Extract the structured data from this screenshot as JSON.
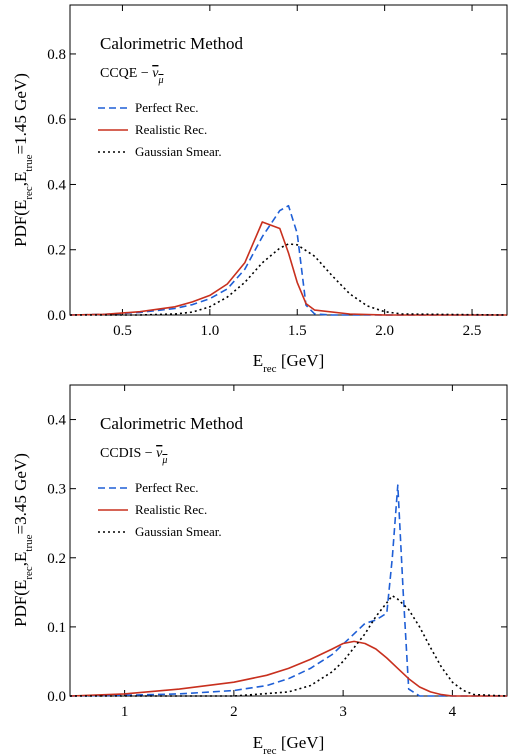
{
  "chart_data": [
    {
      "type": "line",
      "title": "Calorimetric Method",
      "subtitle": "CCQE − ν̅μ",
      "xlabel": "E_rec [GeV]",
      "ylabel": "PDF(E_rec, E_true=1.45 GeV)",
      "xlim": [
        0.2,
        2.7
      ],
      "ylim": [
        0,
        0.95
      ],
      "xticks": [
        0.5,
        1.0,
        1.5,
        2.0,
        2.5
      ],
      "yticks": [
        0.0,
        0.2,
        0.4,
        0.6,
        0.8
      ],
      "xtick_labels": [
        "0.5",
        "1.0",
        "1.5",
        "2.0",
        "2.5"
      ],
      "ytick_labels": [
        "0.0",
        "0.2",
        "0.4",
        "0.6",
        "0.8"
      ],
      "legend_position": "upper-left",
      "series": [
        {
          "name": "Perfect Rec.",
          "color": "#1f5fd6",
          "dash": "dashed",
          "x": [
            0.2,
            0.4,
            0.6,
            0.8,
            0.9,
            1.0,
            1.1,
            1.2,
            1.3,
            1.4,
            1.45,
            1.5,
            1.55,
            1.6,
            1.7,
            2.7
          ],
          "y": [
            0.0,
            0.002,
            0.008,
            0.02,
            0.032,
            0.05,
            0.08,
            0.14,
            0.24,
            0.32,
            0.335,
            0.25,
            0.03,
            0.003,
            0.0,
            0.0
          ]
        },
        {
          "name": "Realistic Rec.",
          "color": "#c8301e",
          "dash": "solid",
          "x": [
            0.2,
            0.4,
            0.6,
            0.8,
            0.9,
            1.0,
            1.1,
            1.2,
            1.3,
            1.4,
            1.45,
            1.5,
            1.55,
            1.6,
            1.8,
            2.0,
            2.7
          ],
          "y": [
            0.0,
            0.002,
            0.01,
            0.025,
            0.04,
            0.06,
            0.095,
            0.16,
            0.285,
            0.265,
            0.19,
            0.1,
            0.035,
            0.015,
            0.003,
            0.0,
            0.0
          ]
        },
        {
          "name": "Gaussian Smear.",
          "color": "#000000",
          "dash": "dotted",
          "x": [
            0.2,
            0.6,
            0.8,
            0.9,
            1.0,
            1.1,
            1.2,
            1.3,
            1.4,
            1.45,
            1.5,
            1.6,
            1.7,
            1.8,
            1.9,
            2.0,
            2.1,
            2.7
          ],
          "y": [
            0.0,
            0.0,
            0.003,
            0.009,
            0.025,
            0.055,
            0.1,
            0.16,
            0.205,
            0.218,
            0.215,
            0.18,
            0.12,
            0.065,
            0.028,
            0.01,
            0.003,
            0.0
          ]
        }
      ]
    },
    {
      "type": "line",
      "title": "Calorimetric Method",
      "subtitle": "CCDIS − ν̅μ",
      "xlabel": "E_rec [GeV]",
      "ylabel": "PDF(E_rec, E_true=3.45 GeV)",
      "xlim": [
        0.5,
        4.5
      ],
      "ylim": [
        0,
        0.45
      ],
      "xticks": [
        1,
        2,
        3,
        4
      ],
      "yticks": [
        0.0,
        0.1,
        0.2,
        0.3,
        0.4
      ],
      "xtick_labels": [
        "1",
        "2",
        "3",
        "4"
      ],
      "ytick_labels": [
        "0.0",
        "0.1",
        "0.2",
        "0.3",
        "0.4"
      ],
      "legend_position": "upper-left",
      "series": [
        {
          "name": "Perfect Rec.",
          "color": "#1f5fd6",
          "dash": "dashed",
          "x": [
            0.5,
            1.0,
            1.5,
            2.0,
            2.3,
            2.5,
            2.7,
            2.9,
            3.0,
            3.1,
            3.2,
            3.3,
            3.4,
            3.45,
            3.5,
            3.55,
            3.6,
            3.7,
            4.5
          ],
          "y": [
            0.0,
            0.001,
            0.003,
            0.008,
            0.015,
            0.025,
            0.04,
            0.06,
            0.075,
            0.09,
            0.105,
            0.11,
            0.12,
            0.2,
            0.305,
            0.15,
            0.01,
            0.0,
            0.0
          ]
        },
        {
          "name": "Realistic Rec.",
          "color": "#c8301e",
          "dash": "solid",
          "x": [
            0.5,
            1.0,
            1.5,
            2.0,
            2.3,
            2.5,
            2.7,
            2.9,
            3.0,
            3.1,
            3.2,
            3.3,
            3.4,
            3.5,
            3.6,
            3.7,
            3.8,
            3.9,
            4.0,
            4.5
          ],
          "y": [
            0.0,
            0.003,
            0.01,
            0.02,
            0.03,
            0.04,
            0.053,
            0.068,
            0.076,
            0.079,
            0.076,
            0.068,
            0.055,
            0.04,
            0.025,
            0.013,
            0.006,
            0.002,
            0.0,
            0.0
          ]
        },
        {
          "name": "Gaussian Smear.",
          "color": "#000000",
          "dash": "dotted",
          "x": [
            0.5,
            2.0,
            2.5,
            2.7,
            2.9,
            3.0,
            3.1,
            3.2,
            3.3,
            3.4,
            3.45,
            3.5,
            3.6,
            3.7,
            3.8,
            3.9,
            4.0,
            4.1,
            4.2,
            4.5
          ],
          "y": [
            0.0,
            0.0,
            0.006,
            0.015,
            0.035,
            0.05,
            0.07,
            0.09,
            0.115,
            0.135,
            0.145,
            0.14,
            0.125,
            0.1,
            0.07,
            0.042,
            0.02,
            0.008,
            0.002,
            0.0
          ]
        }
      ]
    }
  ]
}
